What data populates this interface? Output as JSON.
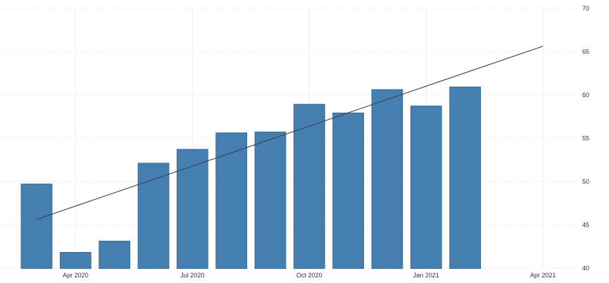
{
  "chart_data": {
    "type": "bar",
    "title": "",
    "categories": [
      "Mar 2020",
      "Apr 2020",
      "May 2020",
      "Jun 2020",
      "Jul 2020",
      "Aug 2020",
      "Sep 2020",
      "Oct 2020",
      "Nov 2020",
      "Dec 2020",
      "Jan 2021",
      "Feb 2021"
    ],
    "values": [
      49.7,
      41.8,
      43.1,
      52.1,
      53.7,
      55.6,
      55.7,
      58.9,
      57.9,
      60.6,
      58.7,
      60.9
    ],
    "xlabel": "",
    "ylabel": "",
    "x_axis": {
      "tick_labels": [
        "Apr 2020",
        "Jul 2020",
        "Oct 2020",
        "Jan 2021",
        "Apr 2021"
      ],
      "tick_month_indices": [
        1,
        4,
        7,
        10,
        13
      ]
    },
    "y_axis": {
      "ticks": [
        40,
        45,
        50,
        55,
        60,
        65,
        70
      ],
      "ylim": [
        40,
        70
      ],
      "side": "right"
    },
    "trend_line": {
      "start": {
        "month_index": 0,
        "value": 45.6
      },
      "end": {
        "month_index": 13,
        "value": 65.6
      }
    },
    "grid": true,
    "legend": false,
    "colors": {
      "background": "#ffffff",
      "bar_fill": "#457fb2",
      "bar_stroke": "#35648c",
      "trend_line": "#404040",
      "gridline_h": "#e2e2e2",
      "gridline_v": "#ececec",
      "tick_text": "#333333"
    }
  }
}
